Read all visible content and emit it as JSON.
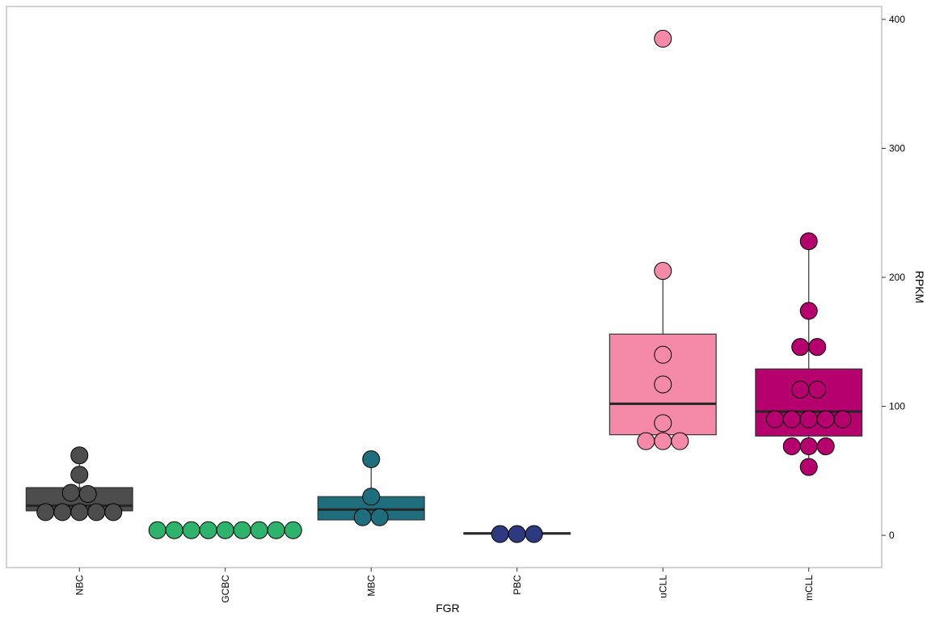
{
  "chart_data": {
    "type": "box",
    "xlabel": "FGR",
    "ylabel": "RPKM",
    "y_axis_side": "right",
    "x_tick_rotation": "vertical",
    "grid": false,
    "legend": "none",
    "ylim": [
      -25,
      410
    ],
    "yticks": [
      0,
      100,
      200,
      300,
      400
    ],
    "categories": [
      "NBC",
      "GCBC",
      "MBC",
      "PBC",
      "uCLL",
      "mCLL"
    ],
    "colors": [
      "#4d4d4d",
      "#2db36b",
      "#1f6e7e",
      "#2e3a80",
      "#f48aa8",
      "#b5006e"
    ],
    "boxes": [
      {
        "category": "NBC",
        "q1": 19,
        "median": 23,
        "q3": 37,
        "whisker_low": 18,
        "whisker_high": 62
      },
      {
        "category": "GCBC",
        "q1": 2.5,
        "median": 3.5,
        "q3": 4.5,
        "whisker_low": 2.5,
        "whisker_high": 4.5
      },
      {
        "category": "MBC",
        "q1": 12,
        "median": 20,
        "q3": 30,
        "whisker_low": 12,
        "whisker_high": 59
      },
      {
        "category": "PBC",
        "q1": 1,
        "median": 1.5,
        "q3": 2,
        "whisker_low": 1,
        "whisker_high": 2
      },
      {
        "category": "uCLL",
        "q1": 78,
        "median": 102,
        "q3": 156,
        "whisker_low": 73,
        "whisker_high": 205
      },
      {
        "category": "mCLL",
        "q1": 77,
        "median": 96,
        "q3": 129,
        "whisker_low": 52,
        "whisker_high": 228
      }
    ],
    "points": [
      {
        "category": "NBC",
        "values": [
          62,
          47,
          33,
          32,
          18,
          18,
          18,
          18,
          18
        ]
      },
      {
        "category": "GCBC",
        "values": [
          4,
          4,
          4,
          4,
          4,
          4,
          4,
          4,
          4
        ]
      },
      {
        "category": "MBC",
        "values": [
          59,
          30,
          14,
          14
        ]
      },
      {
        "category": "PBC",
        "values": [
          1,
          1,
          1
        ]
      },
      {
        "category": "uCLL",
        "values": [
          385,
          205,
          140,
          117,
          87,
          73,
          73,
          73
        ]
      },
      {
        "category": "mCLL",
        "values": [
          228,
          174,
          146,
          146,
          113,
          113,
          90,
          90,
          90,
          90,
          90,
          69,
          69,
          69,
          53
        ]
      }
    ]
  }
}
